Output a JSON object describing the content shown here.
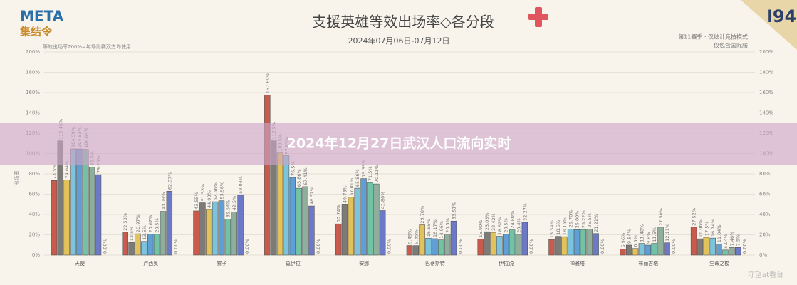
{
  "header": {
    "logo": "META",
    "logo_sub": "集结令",
    "brand": "I94",
    "note_left": "等效出场率200%=每场比赛双方均使用",
    "note_right_1": "第11赛季 · 仅统计竞技模式",
    "note_right_2": "仅包含国际服",
    "overlay": "2024年12月27日武汉人口流向实时",
    "watermark": "守望at看台"
  },
  "chart_data": {
    "type": "bar",
    "title": "支援英雄等效出场率◇各分段",
    "subtitle": "2024年07月06日-07月12日",
    "y_label": "出场率",
    "categories": [
      "天使",
      "卢西奥",
      "雾子",
      "莫伊拉",
      "安娜",
      "巴蒂斯特",
      "伊拉锐",
      "禅雅塔",
      "布丽吉塔",
      "生命之梭"
    ],
    "ylim": [
      0,
      200
    ],
    "yticks": [
      {
        "value": 0,
        "label": "0%"
      },
      {
        "value": 20,
        "label": "20%"
      },
      {
        "value": 40,
        "label": "40%"
      },
      {
        "value": 60,
        "label": "60%"
      },
      {
        "value": 80,
        "label": "80%"
      },
      {
        "value": 100,
        "label": "100%"
      },
      {
        "value": 120,
        "label": "120%"
      },
      {
        "value": 140,
        "label": "140%"
      },
      {
        "value": 160,
        "label": "160%"
      },
      {
        "value": 180,
        "label": "180%"
      },
      {
        "value": 200,
        "label": "200%"
      }
    ],
    "grid": true,
    "series": [
      {
        "color": "#c95a4c",
        "values": [
          73.5,
          22.53,
          43.55,
          157.69,
          30.74,
          9.45,
          15.9,
          15.34,
          5.96,
          27.52
        ],
        "value_labels": [
          "73.5%",
          "22.53%",
          "43.55%",
          "157.69%",
          "30.74%",
          "9.45%",
          "15.90%",
          "15.34%",
          "5.96%",
          "27.52%"
        ]
      },
      {
        "color": "#7d7b78",
        "values": [
          112.45,
          12.5,
          51.53,
          112.5,
          49.73,
          9.35,
          23.03,
          18.5,
          9.84,
          16.06
        ],
        "value_labels": [
          "112.45%",
          "12.5%",
          "51.53%",
          "112.5%",
          "49.73%",
          "9.35%",
          "23.03%",
          "18.5%",
          "9.84%",
          "16.06%"
        ]
      },
      {
        "color": "#e2c25a",
        "values": [
          74.04,
          20.97,
          44.9,
          100.5,
          57.01,
          29.78,
          22.42,
          18.15,
          6.5,
          17.5
        ],
        "value_labels": [
          "74.04%",
          "20.97%",
          "44.90%",
          "100.5%",
          "57.01%",
          "29.78%",
          "22.42%",
          "18.15%",
          "6.5%",
          "17.5%"
        ]
      },
      {
        "color": "#7cc3dc",
        "values": [
          104.59,
          13.5,
          52.56,
          97.85,
          65.86,
          16.65,
          18.62,
          25.7,
          11.48,
          16.74
        ],
        "value_labels": [
          "104.59%",
          "13.5%",
          "52.56%",
          "97.85%",
          "65.86%",
          "16.65%",
          "18.62%",
          "25.70%",
          "11.48%",
          "16.74%"
        ]
      },
      {
        "color": "#5f9fd6",
        "values": [
          104.53,
          20.67,
          53.56,
          76.5,
          75.35,
          16.17,
          20.5,
          25.0,
          9.8,
          11.04
        ],
        "value_labels": [
          "104.53%",
          "20.67%",
          "53.56%",
          "76.5%",
          "75.35%",
          "16.17%",
          "20.5%",
          "25.00%",
          "9.8%",
          "11.04%"
        ]
      },
      {
        "color": "#72c2a6",
        "values": [
          104.04,
          20.5,
          35.54,
          65.86,
          71.5,
          14.96,
          24.8,
          25.22,
          11.5,
          5.04
        ],
        "value_labels": [
          "104.04%",
          "20.5%",
          "35.54%",
          "65.86%",
          "71.5%",
          "14.96%",
          "24.80%",
          "25.22%",
          "11.5%",
          "5.04%"
        ]
      },
      {
        "color": "#8fae9c",
        "values": [
          86.5,
          43.09,
          42.5,
          67.41,
          70.11,
          20.5,
          20.4,
          25.5,
          27.5,
          7.46
        ],
        "value_labels": [
          "86.5%",
          "43.09%",
          "42.5%",
          "67.41%",
          "70.11%",
          "20.5%",
          "20.4%",
          "25.5%",
          "27.50%",
          "7.46%"
        ]
      },
      {
        "color": "#6b79c6",
        "values": [
          79.2,
          62.97,
          59.04,
          48.37,
          43.86,
          33.51,
          32.27,
          21.21,
          12.11,
          7.5
        ],
        "value_labels": [
          "79.20%",
          "62.97%",
          "59.04%",
          "48.37%",
          "43.86%",
          "33.51%",
          "32.27%",
          "21.21%",
          "12.11%",
          "7.5%"
        ]
      },
      {
        "color": "#9a9a9a",
        "values": [
          0,
          0,
          0,
          0,
          0,
          0,
          0,
          0,
          0,
          0
        ],
        "value_labels": [
          "0.00%",
          "0.00%",
          "0.00%",
          "0.00%",
          "0.00%",
          "0.00%",
          "0.00%",
          "0.00%",
          "0.00%",
          "0.00%"
        ]
      }
    ]
  }
}
